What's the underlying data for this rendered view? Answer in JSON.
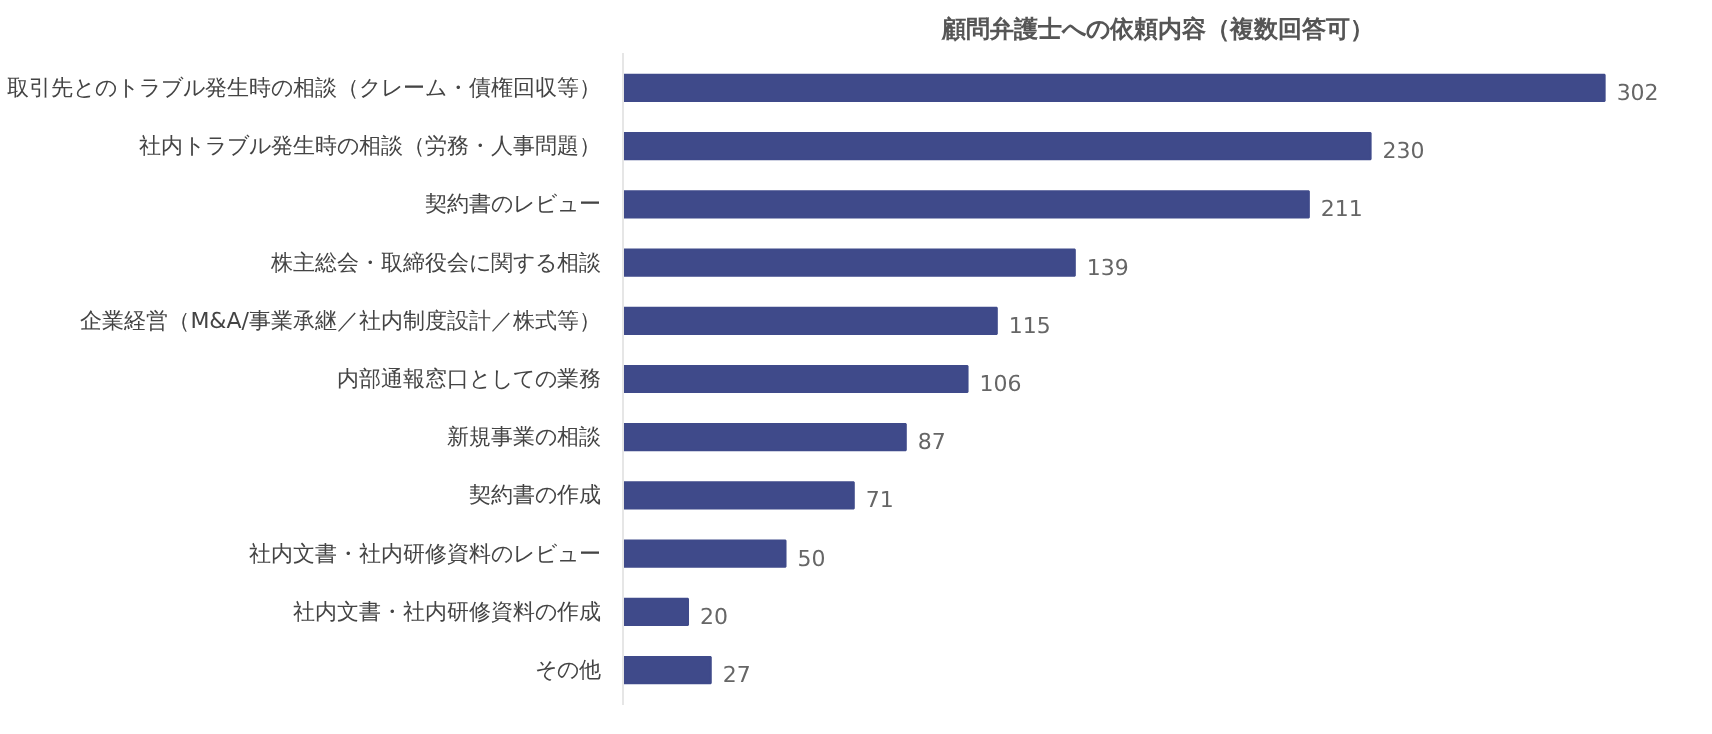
{
  "chart_data": {
    "type": "bar",
    "orientation": "horizontal",
    "title": "顧問弁護士への依頼内容（複数回答可）",
    "categories": [
      "取引先とのトラブル発生時の相談（クレーム・債権回収等）",
      "社内トラブル発生時の相談（労務・人事問題）",
      "契約書のレビュー",
      "株主総会・取締役会に関する相談",
      "企業経営（M&A/事業承継／社内制度設計／株式等）",
      "内部通報窓口としての業務",
      "新規事業の相談",
      "契約書の作成",
      "社内文書・社内研修資料のレビュー",
      "社内文書・社内研修資料の作成",
      "その他"
    ],
    "values": [
      302,
      230,
      211,
      139,
      115,
      106,
      87,
      71,
      50,
      20,
      27
    ],
    "color": "#3f4a8a",
    "data_labels": true
  }
}
